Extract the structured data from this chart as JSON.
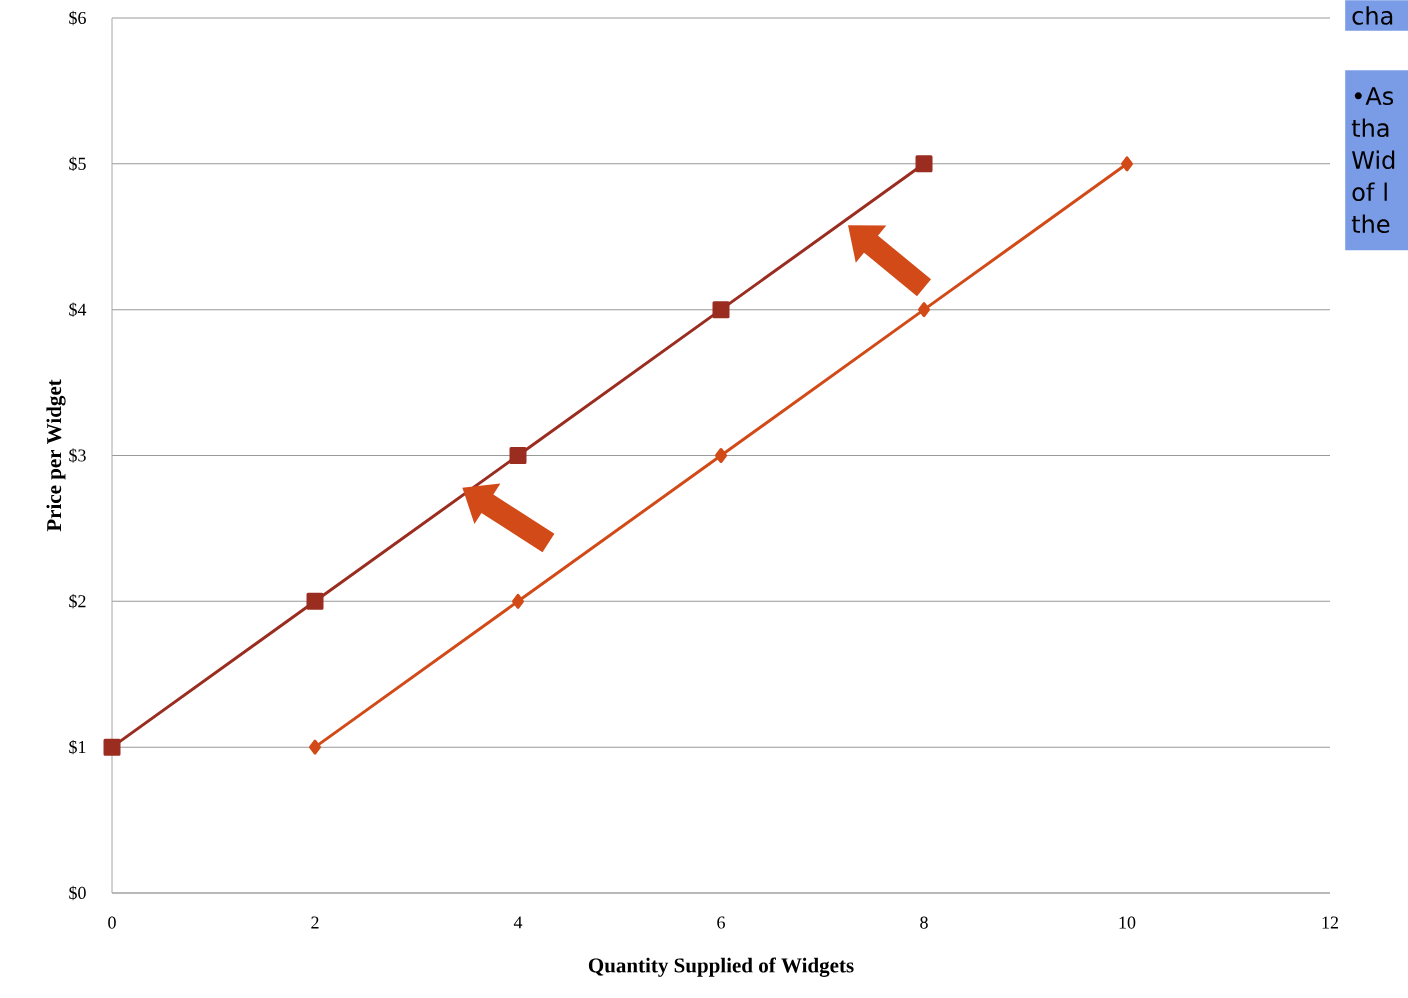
{
  "chart_data": {
    "type": "line",
    "xlabel": "Quantity Supplied of Widgets",
    "ylabel": "Price per Widget",
    "series": [
      {
        "color": "#9b2d20",
        "marker": "square",
        "x": [
          0,
          2,
          4,
          6,
          8
        ],
        "values": [
          1,
          2,
          3,
          4,
          5
        ]
      },
      {
        "color": "#d24a17",
        "marker": "diamond",
        "x": [
          2,
          4,
          6,
          8,
          10
        ],
        "values": [
          1,
          2,
          3,
          4,
          5
        ]
      }
    ],
    "xlim": [
      0,
      12
    ],
    "xticks": [
      0,
      2,
      4,
      6,
      8,
      10,
      12
    ],
    "ylim": [
      0,
      6
    ],
    "yticks": [
      {
        "value": 0,
        "label": "$0"
      },
      {
        "value": 1,
        "label": "$1"
      },
      {
        "value": 2,
        "label": "$2"
      },
      {
        "value": 3,
        "label": "$3"
      },
      {
        "value": 4,
        "label": "$4"
      },
      {
        "value": 5,
        "label": "$5"
      },
      {
        "value": 6,
        "label": "$6"
      }
    ],
    "grid": "y",
    "line_style": "solid",
    "annotations": [
      "cha",
      "•As tha Wid of l the"
    ]
  }
}
